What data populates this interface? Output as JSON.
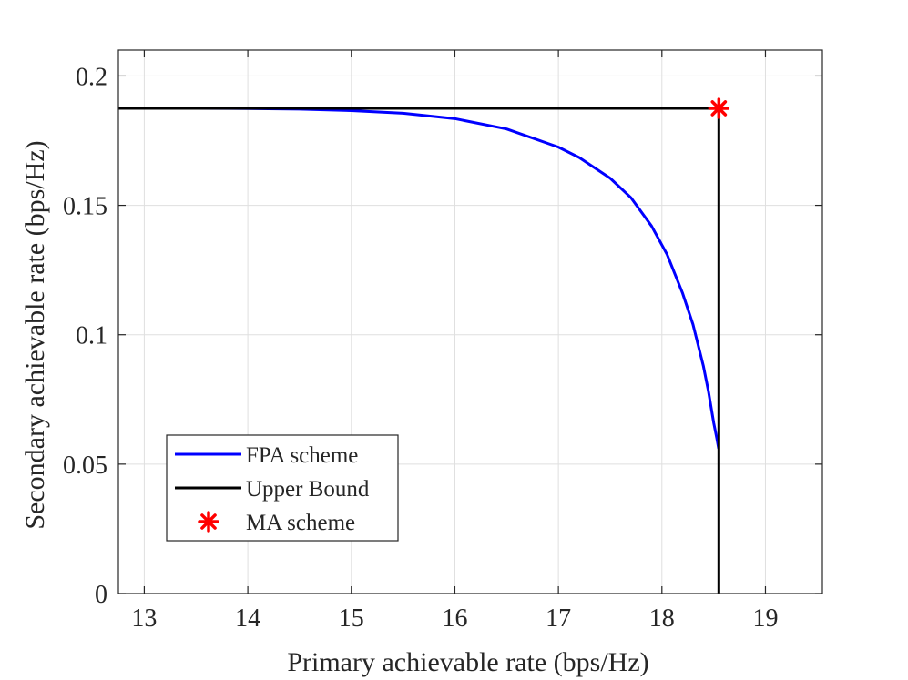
{
  "chart_data": {
    "type": "line",
    "title": "",
    "xlabel": "Primary achievable rate (bps/Hz)",
    "ylabel": "Secondary achievable rate (bps/Hz)",
    "xlim": [
      12.75,
      19.55
    ],
    "ylim": [
      0,
      0.21
    ],
    "xticks": [
      13,
      14,
      15,
      16,
      17,
      18,
      19
    ],
    "xtick_labels": [
      "13",
      "14",
      "15",
      "16",
      "17",
      "18",
      "19"
    ],
    "yticks": [
      0,
      0.05,
      0.1,
      0.15,
      0.2
    ],
    "ytick_labels": [
      "0",
      "0.05",
      "0.1",
      "0.15",
      "0.2"
    ],
    "grid": true,
    "legend_position": "bottom-left",
    "series": [
      {
        "name": "FPA scheme",
        "kind": "line",
        "color": "#0000ff",
        "x": [
          13.0,
          13.5,
          14.0,
          14.5,
          15.0,
          15.5,
          16.0,
          16.5,
          17.0,
          17.2,
          17.5,
          17.7,
          17.9,
          18.05,
          18.2,
          18.3,
          18.4,
          18.45,
          18.5,
          18.53,
          18.548
        ],
        "y": [
          0.1875,
          0.1875,
          0.1874,
          0.1872,
          0.1866,
          0.1856,
          0.1835,
          0.1795,
          0.1725,
          0.1685,
          0.1605,
          0.153,
          0.142,
          0.131,
          0.116,
          0.104,
          0.088,
          0.078,
          0.066,
          0.06,
          0.056
        ]
      },
      {
        "name": "Upper Bound",
        "kind": "line",
        "color": "#000000",
        "x": [
          12.75,
          18.55,
          18.55
        ],
        "y": [
          0.1875,
          0.1875,
          0
        ]
      },
      {
        "name": "MA scheme",
        "kind": "marker",
        "marker": "asterisk",
        "color": "#ff0000",
        "x": [
          18.55
        ],
        "y": [
          0.1875
        ]
      }
    ]
  }
}
